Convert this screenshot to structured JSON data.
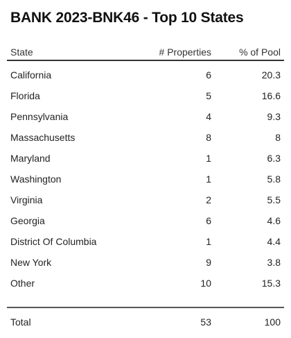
{
  "title": "BANK 2023-BNK46 - Top 10 States",
  "chart_data": {
    "type": "table",
    "title": "BANK 2023-BNK46 - Top 10 States",
    "columns": [
      "State",
      "# Properties",
      "% of Pool"
    ],
    "rows": [
      {
        "state": "California",
        "properties": "6",
        "pool": "20.3"
      },
      {
        "state": "Florida",
        "properties": "5",
        "pool": "16.6"
      },
      {
        "state": "Pennsylvania",
        "properties": "4",
        "pool": "9.3"
      },
      {
        "state": "Massachusetts",
        "properties": "8",
        "pool": "8"
      },
      {
        "state": "Maryland",
        "properties": "1",
        "pool": "6.3"
      },
      {
        "state": "Washington",
        "properties": "1",
        "pool": "5.8"
      },
      {
        "state": "Virginia",
        "properties": "2",
        "pool": "5.5"
      },
      {
        "state": "Georgia",
        "properties": "6",
        "pool": "4.6"
      },
      {
        "state": "District Of Columbia",
        "properties": "1",
        "pool": "4.4"
      },
      {
        "state": "New York",
        "properties": "9",
        "pool": "3.8"
      },
      {
        "state": "Other",
        "properties": "10",
        "pool": "15.3"
      }
    ],
    "total": {
      "label": "Total",
      "properties": "53",
      "pool": "100"
    }
  }
}
